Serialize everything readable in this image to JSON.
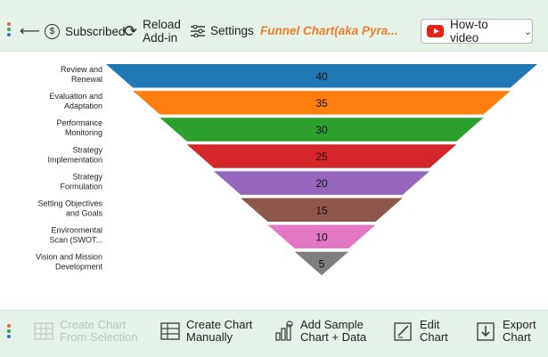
{
  "toolbar": {
    "subscribed_label": "Subscribed",
    "subscribed_icon": "dollar-circle-icon",
    "reload_line1": "Reload",
    "reload_line2": "Add-in",
    "settings_label": "Settings",
    "chart_title": "Funnel Chart(aka Pyra...",
    "howto_label": "How-to video"
  },
  "chart_data": {
    "type": "funnel",
    "categories": [
      [
        "Review and",
        "Renewal"
      ],
      [
        "Evaluation and",
        "Adaptation"
      ],
      [
        "Performance",
        "Monitoring"
      ],
      [
        "Strategy",
        "Implementation"
      ],
      [
        "Strategy",
        "Formulation"
      ],
      [
        "Setting Objectives",
        "and Goals"
      ],
      [
        "Environmental",
        "Scan (SWOT..."
      ],
      [
        "Vision and Mission",
        "Development"
      ]
    ],
    "values": [
      40,
      35,
      30,
      25,
      20,
      15,
      10,
      5
    ],
    "colors": [
      "#1f77b4",
      "#ff7f0e",
      "#2ca02c",
      "#d62728",
      "#9467bd",
      "#8c564b",
      "#e377c2",
      "#7f7f7f"
    ]
  },
  "bottombar": {
    "create_selection_line1": "Create Chart",
    "create_selection_line2": "From Selection",
    "create_manual_line1": "Create Chart",
    "create_manual_line2": "Manually",
    "add_sample_line1": "Add Sample",
    "add_sample_line2": "Chart + Data",
    "edit_line1": "Edit",
    "edit_line2": "Chart",
    "export_line1": "Export",
    "export_line2": "Chart"
  }
}
